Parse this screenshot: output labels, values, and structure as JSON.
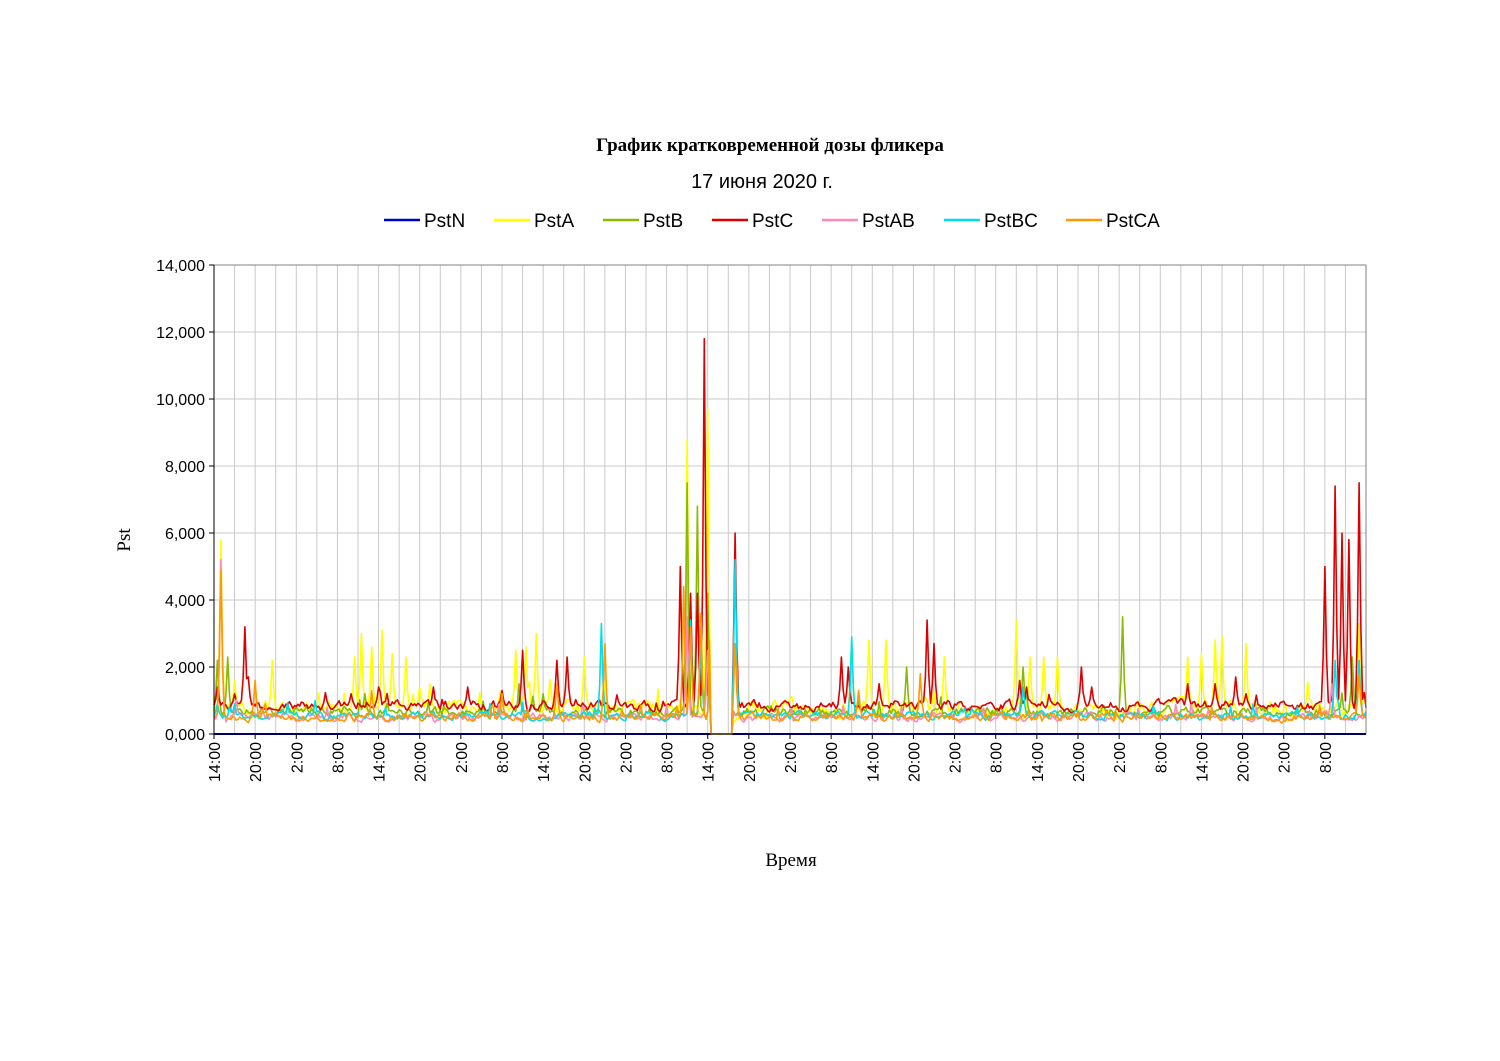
{
  "chart_data": {
    "type": "line",
    "title": "График кратковременной дозы фликера",
    "subtitle": "17 июня 2020 г.",
    "xlabel": "Время",
    "ylabel": "Pst",
    "ylim": [
      0,
      14
    ],
    "y_ticks": [
      0,
      2,
      4,
      6,
      8,
      10,
      12,
      14
    ],
    "y_tick_labels": [
      "0,000",
      "2,000",
      "4,000",
      "6,000",
      "8,000",
      "10,000",
      "12,000",
      "14,000"
    ],
    "x_range_hours": [
      0,
      168
    ],
    "x_ticks": [
      0,
      6,
      12,
      18,
      24,
      30,
      36,
      42,
      48,
      54,
      60,
      66,
      72,
      78,
      84,
      90,
      96,
      102,
      108,
      114,
      120,
      126,
      132,
      138,
      144,
      150,
      156,
      162
    ],
    "x_tick_labels": [
      "14:00",
      "20:00",
      "2:00",
      "8:00",
      "14:00",
      "20:00",
      "2:00",
      "8:00",
      "14:00",
      "20:00",
      "2:00",
      "8:00",
      "14:00",
      "20:00",
      "2:00",
      "8:00",
      "14:00",
      "20:00",
      "2:00",
      "8:00",
      "14:00",
      "20:00",
      "2:00",
      "8:00",
      "14:00",
      "20:00",
      "2:00",
      "8:00"
    ],
    "grid": true,
    "legend_position": "top",
    "gap": [
      72.5,
      75.5
    ],
    "series": [
      {
        "name": "PstN",
        "color": "#0000CC",
        "base": 0.0,
        "noise": 0.0,
        "peaks": []
      },
      {
        "name": "PstA",
        "color": "#FFFF00",
        "base": 0.75,
        "noise": 0.25,
        "peaks": [
          [
            1,
            5.8
          ],
          [
            3,
            1.6
          ],
          [
            8.5,
            2.2
          ],
          [
            20.5,
            2.3
          ],
          [
            21.5,
            3.0
          ],
          [
            23,
            2.6
          ],
          [
            24.5,
            3.1
          ],
          [
            26,
            2.4
          ],
          [
            28,
            2.3
          ],
          [
            30,
            1.4
          ],
          [
            31.5,
            1.5
          ],
          [
            44,
            2.5
          ],
          [
            45.5,
            2.6
          ],
          [
            47,
            3.0
          ],
          [
            54,
            2.3
          ],
          [
            69,
            8.8
          ],
          [
            72,
            9.7
          ],
          [
            93,
            2.8
          ],
          [
            95.5,
            2.8
          ],
          [
            98,
            2.8
          ],
          [
            106.5,
            2.3
          ],
          [
            117,
            3.4
          ],
          [
            119,
            2.3
          ],
          [
            121,
            2.3
          ],
          [
            123,
            2.3
          ],
          [
            142,
            2.3
          ],
          [
            144,
            2.4
          ],
          [
            146,
            2.8
          ],
          [
            147,
            2.9
          ],
          [
            150.5,
            2.7
          ],
          [
            167,
            3.3
          ]
        ]
      },
      {
        "name": "PstB",
        "color": "#88BB00",
        "base": 0.65,
        "noise": 0.15,
        "peaks": [
          [
            0.5,
            2.2
          ],
          [
            2,
            2.3
          ],
          [
            22,
            1.2
          ],
          [
            44.5,
            1.5
          ],
          [
            48,
            1.2
          ],
          [
            69,
            7.5
          ],
          [
            70.5,
            6.8
          ],
          [
            72,
            4.2
          ],
          [
            94,
            1.0
          ],
          [
            101,
            2.0
          ],
          [
            118,
            2.0
          ],
          [
            132.5,
            3.5
          ],
          [
            166,
            2.3
          ]
        ]
      },
      {
        "name": "PstC",
        "color": "#DD0000",
        "base": 0.85,
        "noise": 0.15,
        "peaks": [
          [
            0.5,
            1.4
          ],
          [
            3,
            1.2
          ],
          [
            4.5,
            3.2
          ],
          [
            5,
            1.7
          ],
          [
            20,
            1.2
          ],
          [
            24,
            1.4
          ],
          [
            32,
            1.4
          ],
          [
            37,
            1.4
          ],
          [
            42,
            1.3
          ],
          [
            45,
            2.5
          ],
          [
            50,
            2.2
          ],
          [
            51.5,
            2.3
          ],
          [
            68,
            5.0
          ],
          [
            69.5,
            4.2
          ],
          [
            70.5,
            4.2
          ],
          [
            71.5,
            11.8
          ],
          [
            72.7,
            8.5
          ],
          [
            73,
            7.0
          ],
          [
            76,
            6.0
          ],
          [
            91.5,
            2.3
          ],
          [
            92.5,
            2.0
          ],
          [
            97,
            1.5
          ],
          [
            104,
            3.4
          ],
          [
            105,
            2.7
          ],
          [
            117.5,
            1.6
          ],
          [
            118.5,
            1.4
          ],
          [
            126.5,
            2.0
          ],
          [
            128,
            1.4
          ],
          [
            142,
            1.5
          ],
          [
            146,
            1.5
          ],
          [
            149,
            1.7
          ],
          [
            150.5,
            1.2
          ],
          [
            162,
            5.0
          ],
          [
            163.5,
            7.4
          ],
          [
            164.5,
            6.0
          ],
          [
            165.5,
            5.8
          ],
          [
            167,
            7.5
          ]
        ]
      },
      {
        "name": "PstAB",
        "color": "#FF88BB",
        "base": 0.5,
        "noise": 0.12,
        "peaks": [
          [
            1,
            5.2
          ],
          [
            69,
            3.5
          ],
          [
            72,
            2.5
          ],
          [
            163,
            1.5
          ]
        ]
      },
      {
        "name": "PstBC",
        "color": "#00DDEE",
        "base": 0.55,
        "noise": 0.12,
        "peaks": [
          [
            0.5,
            0.9
          ],
          [
            56.5,
            3.3
          ],
          [
            69.5,
            3.4
          ],
          [
            71,
            2.6
          ],
          [
            72.5,
            4.1
          ],
          [
            76,
            5.2
          ],
          [
            93,
            2.9
          ],
          [
            118,
            1.4
          ],
          [
            163.5,
            2.2
          ],
          [
            167,
            2.2
          ]
        ]
      },
      {
        "name": "PstCA",
        "color": "#FF9900",
        "base": 0.5,
        "noise": 0.12,
        "peaks": [
          [
            1,
            4.9
          ],
          [
            6,
            1.6
          ],
          [
            23,
            1.3
          ],
          [
            42,
            1.2
          ],
          [
            50,
            1.5
          ],
          [
            57,
            2.7
          ],
          [
            68.5,
            4.4
          ],
          [
            69.5,
            3.2
          ],
          [
            71,
            3.6
          ],
          [
            72.5,
            7.2
          ],
          [
            76,
            2.7
          ],
          [
            94,
            1.3
          ],
          [
            103,
            1.8
          ],
          [
            167,
            1.8
          ]
        ]
      }
    ]
  }
}
